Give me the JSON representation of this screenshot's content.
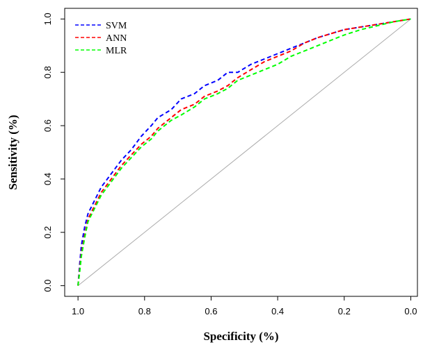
{
  "chart_data": {
    "type": "line",
    "xlabel": "Specificity (%)",
    "ylabel": "Sensitivity (%)",
    "xlim": [
      1.0,
      0.0
    ],
    "ylim": [
      0.0,
      1.0
    ],
    "x_reversed": true,
    "xticks": [
      "1.0",
      "0.8",
      "0.6",
      "0.4",
      "0.2",
      "0.0"
    ],
    "xtick_values": [
      1.0,
      0.8,
      0.6,
      0.4,
      0.2,
      0.0
    ],
    "yticks": [
      "0.0",
      "0.2",
      "0.4",
      "0.6",
      "0.8",
      "1.0"
    ],
    "ytick_values": [
      0.0,
      0.2,
      0.4,
      0.6,
      0.8,
      1.0
    ],
    "grid": false,
    "legend_position": "top-left",
    "reference_line": {
      "x": [
        1.0,
        0.0
      ],
      "y": [
        0.0,
        1.0
      ],
      "color": "#aaaaaa"
    },
    "series": [
      {
        "name": "SVM",
        "color": "#0000ff",
        "x": [
          1.0,
          0.995,
          0.99,
          0.98,
          0.97,
          0.95,
          0.93,
          0.9,
          0.87,
          0.84,
          0.81,
          0.78,
          0.76,
          0.72,
          0.69,
          0.65,
          0.62,
          0.58,
          0.55,
          0.52,
          0.48,
          0.44,
          0.4,
          0.36,
          0.32,
          0.28,
          0.24,
          0.2,
          0.15,
          0.1,
          0.05,
          0.0
        ],
        "y": [
          0.0,
          0.08,
          0.15,
          0.22,
          0.27,
          0.32,
          0.37,
          0.42,
          0.47,
          0.51,
          0.56,
          0.6,
          0.63,
          0.66,
          0.7,
          0.72,
          0.75,
          0.77,
          0.8,
          0.8,
          0.83,
          0.85,
          0.87,
          0.89,
          0.91,
          0.93,
          0.945,
          0.96,
          0.97,
          0.98,
          0.99,
          1.0
        ]
      },
      {
        "name": "ANN",
        "color": "#ff0000",
        "x": [
          1.0,
          0.995,
          0.99,
          0.98,
          0.97,
          0.95,
          0.93,
          0.9,
          0.87,
          0.84,
          0.81,
          0.78,
          0.76,
          0.72,
          0.69,
          0.65,
          0.62,
          0.58,
          0.55,
          0.52,
          0.48,
          0.44,
          0.4,
          0.36,
          0.32,
          0.28,
          0.24,
          0.2,
          0.15,
          0.1,
          0.05,
          0.0
        ],
        "y": [
          0.0,
          0.06,
          0.12,
          0.19,
          0.25,
          0.3,
          0.35,
          0.4,
          0.45,
          0.49,
          0.53,
          0.56,
          0.59,
          0.63,
          0.66,
          0.68,
          0.71,
          0.73,
          0.75,
          0.78,
          0.81,
          0.84,
          0.86,
          0.88,
          0.91,
          0.93,
          0.945,
          0.96,
          0.97,
          0.98,
          0.99,
          1.0
        ]
      },
      {
        "name": "MLR",
        "color": "#00ff00",
        "x": [
          1.0,
          0.995,
          0.99,
          0.98,
          0.97,
          0.95,
          0.93,
          0.9,
          0.87,
          0.84,
          0.81,
          0.78,
          0.76,
          0.72,
          0.69,
          0.65,
          0.62,
          0.58,
          0.55,
          0.52,
          0.48,
          0.44,
          0.4,
          0.36,
          0.32,
          0.28,
          0.24,
          0.2,
          0.15,
          0.1,
          0.05,
          0.0
        ],
        "y": [
          0.0,
          0.05,
          0.11,
          0.18,
          0.24,
          0.29,
          0.34,
          0.39,
          0.44,
          0.48,
          0.52,
          0.55,
          0.58,
          0.62,
          0.64,
          0.67,
          0.7,
          0.72,
          0.74,
          0.77,
          0.79,
          0.81,
          0.83,
          0.86,
          0.88,
          0.9,
          0.92,
          0.94,
          0.96,
          0.975,
          0.99,
          1.0
        ]
      }
    ]
  }
}
